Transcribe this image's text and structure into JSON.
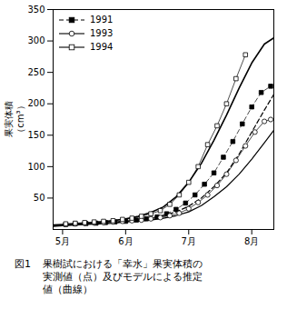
{
  "chart_data": {
    "type": "line",
    "ylabel": "果実体積\n（cm³）",
    "caption_number": "図1",
    "caption": [
      "果樹試における「幸水」果実体積の",
      "実測値（点）及びモデルによる推定",
      "値（曲線）"
    ],
    "xlim": [
      4.85,
      8.35
    ],
    "xticks": [
      {
        "value": 5.0,
        "label": "5月"
      },
      {
        "value": 6.0,
        "label": "6月"
      },
      {
        "value": 7.0,
        "label": "7月"
      },
      {
        "value": 8.0,
        "label": "8月"
      }
    ],
    "ylim": [
      0,
      350
    ],
    "yticks": [
      50,
      100,
      150,
      200,
      250,
      300,
      350
    ],
    "grid": false,
    "legend": "upper left",
    "series": [
      {
        "name": "1991",
        "color": "#000000",
        "marker": "filled_square",
        "line_style": "dashed",
        "x": [
          5.05,
          5.2,
          5.37,
          5.53,
          5.68,
          5.83,
          6.0,
          6.17,
          6.33,
          6.5,
          6.65,
          6.8,
          6.95,
          7.1,
          7.25,
          7.4,
          7.55,
          7.7,
          7.85,
          8.0,
          8.15,
          8.3
        ],
        "values": [
          8,
          9,
          9.5,
          10,
          11,
          12,
          13,
          15,
          17,
          20,
          25,
          32,
          42,
          55,
          72,
          90,
          115,
          140,
          168,
          195,
          218,
          228
        ],
        "model": {
          "x": [
            4.85,
            5.0,
            5.2,
            5.4,
            5.6,
            5.8,
            6.0,
            6.2,
            6.4,
            6.6,
            6.8,
            7.0,
            7.2,
            7.4,
            7.6,
            7.8,
            8.0,
            8.2,
            8.35
          ],
          "values": [
            6,
            7,
            8,
            9,
            10,
            11,
            13,
            15,
            18,
            22,
            28,
            37,
            50,
            68,
            90,
            120,
            155,
            190,
            215
          ]
        }
      },
      {
        "name": "1993",
        "color": "#000000",
        "marker": "open_circle",
        "line_style": "solid",
        "x": [
          5.05,
          5.2,
          5.35,
          5.5,
          5.65,
          5.8,
          5.95,
          6.1,
          6.25,
          6.4,
          6.55,
          6.7,
          6.85,
          7.0,
          7.15,
          7.3,
          7.45,
          7.6,
          7.75,
          7.9,
          8.05,
          8.2,
          8.3
        ],
        "values": [
          8,
          9,
          10,
          10.5,
          11,
          12,
          13,
          14,
          15,
          17,
          19,
          22,
          26,
          33,
          43,
          55,
          70,
          88,
          110,
          133,
          155,
          172,
          175
        ],
        "model": {
          "x": [
            4.85,
            5.0,
            5.2,
            5.4,
            5.6,
            5.8,
            6.0,
            6.2,
            6.4,
            6.6,
            6.8,
            7.0,
            7.2,
            7.4,
            7.6,
            7.8,
            8.0,
            8.2,
            8.35
          ],
          "values": [
            5,
            6,
            7,
            8,
            9,
            10,
            12,
            13,
            15,
            18,
            22,
            28,
            38,
            52,
            68,
            88,
            112,
            138,
            158
          ]
        }
      },
      {
        "name": "1994",
        "color": "#000000",
        "marker": "open_square",
        "line_style": "solid",
        "x": [
          5.05,
          5.2,
          5.35,
          5.5,
          5.65,
          5.8,
          5.95,
          6.1,
          6.25,
          6.4,
          6.55,
          6.7,
          6.85,
          7.0,
          7.15,
          7.3,
          7.45,
          7.6,
          7.75,
          7.9
        ],
        "values": [
          9,
          10,
          11,
          12,
          13,
          14,
          16,
          18,
          21,
          25,
          30,
          40,
          55,
          75,
          100,
          135,
          165,
          200,
          240,
          278
        ],
        "model": {
          "x": [
            4.85,
            5.0,
            5.2,
            5.4,
            5.6,
            5.8,
            6.0,
            6.2,
            6.4,
            6.6,
            6.8,
            7.0,
            7.2,
            7.4,
            7.6,
            7.8,
            8.0,
            8.2,
            8.35
          ],
          "values": [
            7,
            8,
            9,
            10,
            12,
            14,
            17,
            21,
            27,
            36,
            52,
            75,
            105,
            142,
            182,
            225,
            265,
            295,
            305
          ]
        }
      }
    ]
  }
}
